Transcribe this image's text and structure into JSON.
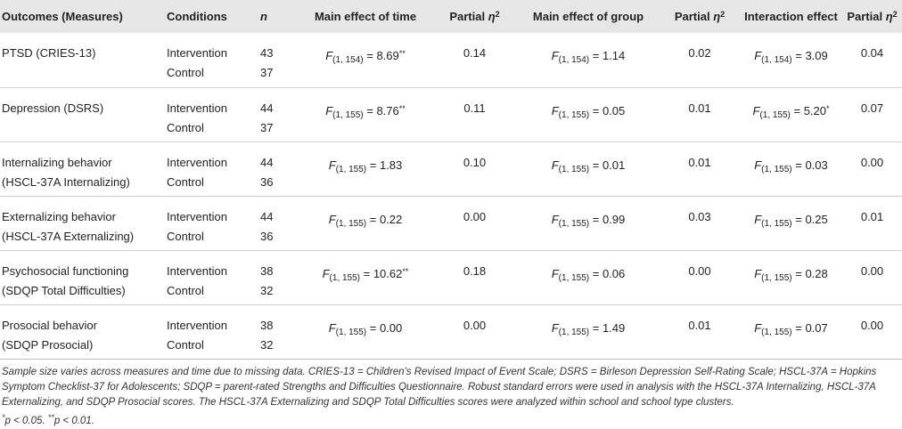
{
  "headers": {
    "outcomes": "Outcomes (Measures)",
    "conditions": "Conditions",
    "n": "n",
    "time": "Main effect of time",
    "partial": "Partial",
    "eta": "η",
    "two": "2",
    "group": "Main effect of group",
    "interaction": "Interaction effect"
  },
  "stat_symbol": "F",
  "condition_labels": {
    "intervention": "Intervention",
    "control": "Control"
  },
  "rows": [
    {
      "outcome_l1": "PTSD (CRIES-13)",
      "outcome_l2": "",
      "n_int": "43",
      "n_ctrl": "37",
      "df": "(1, 154)",
      "time_val": " = 8.69",
      "time_sig": "**",
      "time_eta": "0.14",
      "group_val": " = 1.14",
      "group_sig": "",
      "group_eta": "0.02",
      "inter_val": " = 3.09",
      "inter_sig": "",
      "inter_eta": "0.04"
    },
    {
      "outcome_l1": "Depression (DSRS)",
      "outcome_l2": "",
      "n_int": "44",
      "n_ctrl": "37",
      "df": "(1, 155)",
      "time_val": " = 8.76",
      "time_sig": "**",
      "time_eta": "0.11",
      "group_val": " = 0.05",
      "group_sig": "",
      "group_eta": "0.01",
      "inter_val": " = 5.20",
      "inter_sig": "*",
      "inter_eta": "0.07"
    },
    {
      "outcome_l1": "Internalizing behavior",
      "outcome_l2": "(HSCL-37A Internalizing)",
      "n_int": "44",
      "n_ctrl": "36",
      "df": "(1, 155)",
      "time_val": " = 1.83",
      "time_sig": "",
      "time_eta": "0.10",
      "group_val": " = 0.01",
      "group_sig": "",
      "group_eta": "0.01",
      "inter_val": " = 0.03",
      "inter_sig": "",
      "inter_eta": "0.00"
    },
    {
      "outcome_l1": "Externalizing behavior",
      "outcome_l2": "(HSCL-37A Externalizing)",
      "n_int": "44",
      "n_ctrl": "36",
      "df": "(1, 155)",
      "time_val": " = 0.22",
      "time_sig": "",
      "time_eta": "0.00",
      "group_val": " = 0.99",
      "group_sig": "",
      "group_eta": "0.03",
      "inter_val": " = 0.25",
      "inter_sig": "",
      "inter_eta": "0.01"
    },
    {
      "outcome_l1": "Psychosocial functioning",
      "outcome_l2": "(SDQP Total Difficulties)",
      "n_int": "38",
      "n_ctrl": "32",
      "df": "(1, 155)",
      "time_val": " = 10.62",
      "time_sig": "**",
      "time_eta": "0.18",
      "group_val": " = 0.06",
      "group_sig": "",
      "group_eta": "0.00",
      "inter_val": " = 0.28",
      "inter_sig": "",
      "inter_eta": "0.00"
    },
    {
      "outcome_l1": "Prosocial behavior",
      "outcome_l2": "(SDQP Prosocial)",
      "n_int": "38",
      "n_ctrl": "32",
      "df": "(1, 155)",
      "time_val": " = 0.00",
      "time_sig": "",
      "time_eta": "0.00",
      "group_val": " = 1.49",
      "group_sig": "",
      "group_eta": "0.01",
      "inter_val": " = 0.07",
      "inter_sig": "",
      "inter_eta": "0.00"
    }
  ],
  "footnote": {
    "main": "Sample size varies across measures and time due to missing data. CRIES-13 = Children's Revised Impact of Event Scale; DSRS = Birleson Depression Self-Rating Scale; HSCL-37A = Hopkins Symptom Checklist-37 for Adolescents; SDQP = parent-rated Strengths and Difficulties Questionnaire. Robust standard errors were used in analysis with the HSCL-37A Internalizing, HSCL-37A Externalizing, and SDQP Prosocial scores. The HSCL-37A Externalizing and SDQP Total Difficulties scores were analyzed within school and school type clusters.",
    "star1": "*",
    "sig1": "p < 0.05. ",
    "star2": "**",
    "sig2": "p < 0.01."
  }
}
